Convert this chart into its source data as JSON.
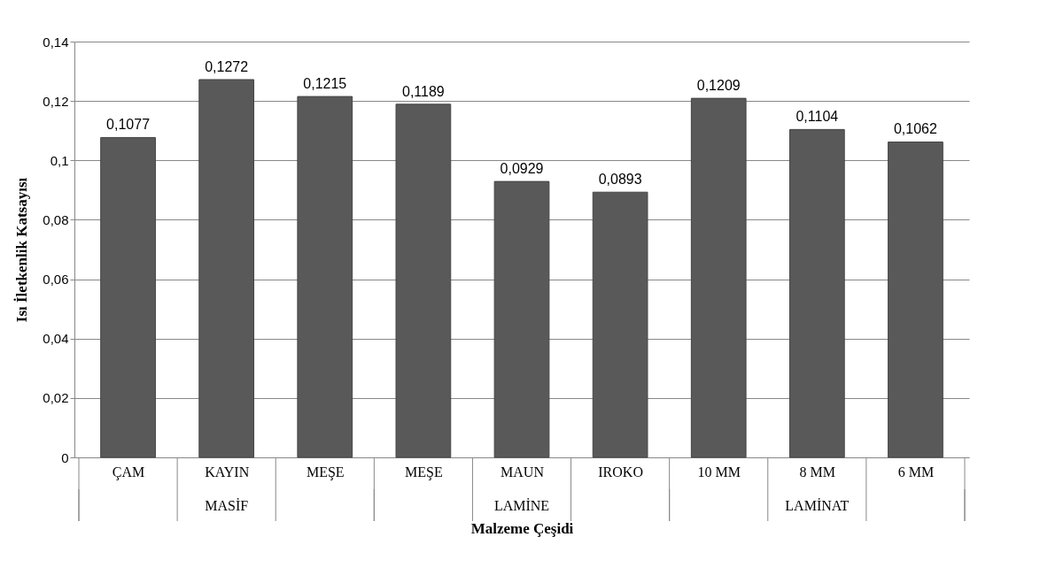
{
  "chart_data": {
    "type": "bar",
    "xlabel": "Malzeme Çeşidi",
    "ylabel": "Isı İletkenlik Katsayısı",
    "categories": [
      "ÇAM",
      "KAYIN",
      "MEŞE",
      "MEŞE",
      "MAUN",
      "IROKO",
      "10 MM",
      "8 MM",
      "6 MM"
    ],
    "values": [
      0.1077,
      0.1272,
      0.1215,
      0.1189,
      0.0929,
      0.0893,
      0.1209,
      0.1104,
      0.1062
    ],
    "value_labels": [
      "0,1077",
      "0,1272",
      "0,1215",
      "0,1189",
      "0,0929",
      "0,0893",
      "0,1209",
      "0,1104",
      "0,1062"
    ],
    "color": "#595959",
    "ylim": [
      0,
      0.14
    ],
    "yticks": [
      {
        "value": 0,
        "label": "0"
      },
      {
        "value": 0.02,
        "label": "0,02"
      },
      {
        "value": 0.04,
        "label": "0,04"
      },
      {
        "value": 0.06,
        "label": "0,06"
      },
      {
        "value": 0.08,
        "label": "0,08"
      },
      {
        "value": 0.1,
        "label": "0,1"
      },
      {
        "value": 0.12,
        "label": "0,12"
      },
      {
        "value": 0.14,
        "label": "0,14"
      }
    ],
    "grid": "y",
    "annotations": [
      "MASİF",
      "LAMİNE",
      "LAMİNAT"
    ]
  }
}
